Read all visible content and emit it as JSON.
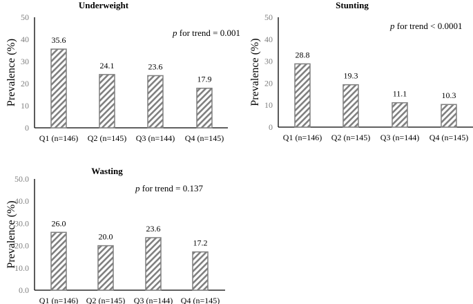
{
  "chart_data": [
    {
      "type": "bar",
      "title": "Underweight",
      "ylabel": "Prevalence (%)",
      "xlabel": "",
      "ylim": [
        0,
        50
      ],
      "yticks": [
        "0",
        "10",
        "20",
        "30",
        "40",
        "50"
      ],
      "categories": [
        "Q1 (n=146)",
        "Q2 (n=145)",
        "Q3 (n=144)",
        "Q4 (n=145)"
      ],
      "values": [
        35.6,
        24.1,
        23.6,
        17.9
      ],
      "data_labels": [
        "35.6",
        "24.1",
        "23.6",
        "17.9"
      ],
      "annotation": {
        "p": "p",
        "text": " for trend = 0.001"
      },
      "grid": false,
      "bar_fill": "diagonal-hatch",
      "bar_color": "#7f7f7f"
    },
    {
      "type": "bar",
      "title": "Stunting",
      "ylabel": "Prevalence (%)",
      "xlabel": "",
      "ylim": [
        0,
        50
      ],
      "yticks": [
        "0",
        "10",
        "20",
        "30",
        "40",
        "50"
      ],
      "categories": [
        "Q1 (n=146)",
        "Q2 (n=145)",
        "Q3 (n=144)",
        "Q4 (n=145)"
      ],
      "values": [
        28.8,
        19.3,
        11.1,
        10.3
      ],
      "data_labels": [
        "28.8",
        "19.3",
        "11.1",
        "10.3"
      ],
      "annotation": {
        "p": "p",
        "text": " for trend < 0.0001"
      },
      "grid": false,
      "bar_fill": "diagonal-hatch",
      "bar_color": "#7f7f7f"
    },
    {
      "type": "bar",
      "title": "Wasting",
      "ylabel": "Prevalence (%)",
      "xlabel": "",
      "ylim": [
        0,
        50
      ],
      "yticks": [
        "0.0",
        "10.0",
        "20.0",
        "30.0",
        "40.0",
        "50.0"
      ],
      "categories": [
        "Q1 (n=146)",
        "Q2 (n=145)",
        "Q3 (n=144)",
        "Q4 (n=145)"
      ],
      "values": [
        26.0,
        20.0,
        23.6,
        17.2
      ],
      "data_labels": [
        "26.0",
        "20.0",
        "23.6",
        "17.2"
      ],
      "annotation": {
        "p": "p",
        "text": " for trend = 0.137"
      },
      "grid": false,
      "bar_fill": "diagonal-hatch",
      "bar_color": "#7f7f7f"
    }
  ]
}
